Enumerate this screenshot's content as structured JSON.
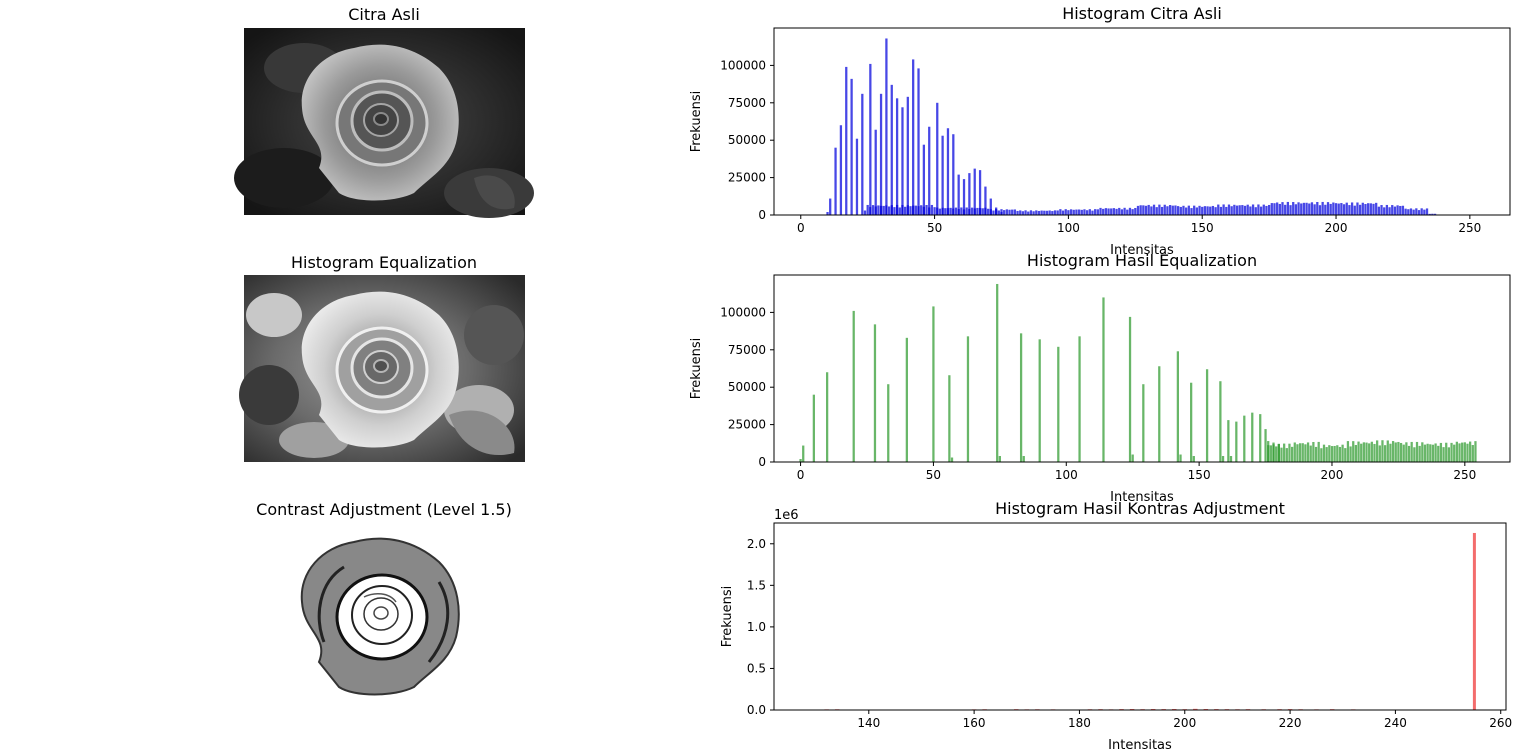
{
  "images": [
    {
      "title": "Citra Asli",
      "variant": "original"
    },
    {
      "title": "Histogram Equalization",
      "variant": "equalized"
    },
    {
      "title": "Contrast Adjustment (Level 1.5)",
      "variant": "contrast"
    }
  ],
  "chart_data": [
    {
      "type": "bar",
      "title": "Histogram Citra Asli",
      "xlabel": "Intensitas",
      "ylabel": "Frekuensi",
      "xlim": [
        -10,
        265
      ],
      "ylim": [
        0,
        125000
      ],
      "xticks": [
        0,
        50,
        100,
        150,
        200,
        250
      ],
      "yticks": [
        0,
        25000,
        50000,
        75000,
        100000
      ],
      "ytick_labels": [
        "0",
        "25000",
        "50000",
        "75000",
        "100000"
      ],
      "xtick_labels": [
        "0",
        "50",
        "100",
        "150",
        "200",
        "250"
      ],
      "offset_label": "",
      "color": "#0000dd",
      "bar_width": 1,
      "grid": false,
      "bars": [
        [
          10,
          2000
        ],
        [
          11,
          11000
        ],
        [
          13,
          45000
        ],
        [
          15,
          60000
        ],
        [
          17,
          99000
        ],
        [
          19,
          91000
        ],
        [
          21,
          51000
        ],
        [
          23,
          81000
        ],
        [
          24,
          3000
        ],
        [
          26,
          101000
        ],
        [
          28,
          57000
        ],
        [
          30,
          81000
        ],
        [
          32,
          118000
        ],
        [
          34,
          87000
        ],
        [
          36,
          78000
        ],
        [
          38,
          72000
        ],
        [
          40,
          79000
        ],
        [
          42,
          104000
        ],
        [
          44,
          98000
        ],
        [
          46,
          47000
        ],
        [
          48,
          59000
        ],
        [
          51,
          75000
        ],
        [
          53,
          53000
        ],
        [
          55,
          58000
        ],
        [
          57,
          54000
        ],
        [
          59,
          27000
        ],
        [
          61,
          24000
        ],
        [
          63,
          28000
        ],
        [
          65,
          31000
        ],
        [
          67,
          30000
        ],
        [
          69,
          19000
        ],
        [
          71,
          11000
        ],
        [
          73,
          5000
        ],
        [
          75,
          2000
        ]
      ],
      "band_segments": [
        [
          25,
          50,
          6000
        ],
        [
          51,
          70,
          4500
        ],
        [
          71,
          80,
          3500
        ],
        [
          81,
          95,
          2800
        ],
        [
          96,
          110,
          3500
        ],
        [
          111,
          125,
          4300
        ],
        [
          126,
          140,
          6200
        ],
        [
          141,
          155,
          5600
        ],
        [
          156,
          175,
          6300
        ],
        [
          176,
          200,
          7800
        ],
        [
          201,
          215,
          7500
        ],
        [
          216,
          225,
          6000
        ],
        [
          226,
          234,
          4000
        ],
        [
          235,
          237,
          800
        ]
      ]
    },
    {
      "type": "bar",
      "title": "Histogram Hasil Equalization",
      "xlabel": "Intensitas",
      "ylabel": "Frekuensi",
      "xlim": [
        -10,
        267
      ],
      "ylim": [
        0,
        125000
      ],
      "xticks": [
        0,
        50,
        100,
        150,
        200,
        250
      ],
      "yticks": [
        0,
        25000,
        50000,
        75000,
        100000
      ],
      "ytick_labels": [
        "0",
        "25000",
        "50000",
        "75000",
        "100000"
      ],
      "xtick_labels": [
        "0",
        "50",
        "100",
        "150",
        "200",
        "250"
      ],
      "offset_label": "",
      "color": "#2e9a2e",
      "bar_width": 1,
      "grid": false,
      "bars": [
        [
          0,
          2000
        ],
        [
          1,
          11000
        ],
        [
          5,
          45000
        ],
        [
          10,
          60000
        ],
        [
          20,
          101000
        ],
        [
          28,
          92000
        ],
        [
          33,
          52000
        ],
        [
          40,
          83000
        ],
        [
          50,
          104000
        ],
        [
          56,
          58000
        ],
        [
          57,
          3000
        ],
        [
          63,
          84000
        ],
        [
          74,
          119000
        ],
        [
          75,
          4000
        ],
        [
          83,
          86000
        ],
        [
          84,
          4000
        ],
        [
          90,
          82000
        ],
        [
          97,
          77000
        ],
        [
          105,
          84000
        ],
        [
          114,
          110000
        ],
        [
          124,
          97000
        ],
        [
          125,
          5000
        ],
        [
          129,
          52000
        ],
        [
          135,
          64000
        ],
        [
          142,
          74000
        ],
        [
          143,
          5000
        ],
        [
          147,
          53000
        ],
        [
          148,
          4000
        ],
        [
          153,
          62000
        ],
        [
          158,
          54000
        ],
        [
          159,
          4000
        ],
        [
          161,
          28000
        ],
        [
          162,
          4000
        ],
        [
          164,
          27000
        ],
        [
          167,
          31000
        ],
        [
          170,
          33000
        ],
        [
          173,
          32000
        ],
        [
          175,
          22000
        ],
        [
          176,
          14000
        ],
        [
          178,
          13000
        ],
        [
          180,
          12000
        ]
      ],
      "band_segments": [
        [
          176,
          185,
          11000
        ],
        [
          186,
          195,
          12000
        ],
        [
          196,
          205,
          10500
        ],
        [
          206,
          215,
          12500
        ],
        [
          216,
          225,
          13000
        ],
        [
          226,
          235,
          12000
        ],
        [
          236,
          245,
          11500
        ],
        [
          246,
          254,
          12500
        ]
      ]
    },
    {
      "type": "bar",
      "title": "Histogram Hasil Kontras Adjustment",
      "xlabel": "Intensitas",
      "ylabel": "Frekuensi",
      "xlim": [
        122,
        261
      ],
      "ylim": [
        0,
        2250000
      ],
      "xticks": [
        140,
        160,
        180,
        200,
        220,
        240,
        260
      ],
      "yticks": [
        0,
        500000,
        1000000,
        1500000,
        2000000
      ],
      "ytick_labels": [
        "0.0",
        "0.5",
        "1.0",
        "1.5",
        "2.0"
      ],
      "xtick_labels": [
        "140",
        "160",
        "180",
        "200",
        "220",
        "240",
        "260"
      ],
      "offset_label": "1e6",
      "color": "#ee3333",
      "bar_width": 1,
      "grid": false,
      "bars": [
        [
          132,
          8000
        ],
        [
          134,
          9000
        ],
        [
          160,
          8000
        ],
        [
          162,
          9000
        ],
        [
          168,
          10000
        ],
        [
          170,
          8000
        ],
        [
          172,
          9000
        ],
        [
          175,
          8000
        ],
        [
          182,
          9000
        ],
        [
          184,
          10000
        ],
        [
          186,
          8000
        ],
        [
          188,
          11000
        ],
        [
          190,
          12000
        ],
        [
          192,
          10000
        ],
        [
          194,
          12000
        ],
        [
          196,
          11000
        ],
        [
          198,
          12000
        ],
        [
          200,
          10000
        ],
        [
          202,
          14000
        ],
        [
          204,
          12000
        ],
        [
          206,
          11000
        ],
        [
          208,
          10000
        ],
        [
          210,
          9000
        ],
        [
          212,
          10000
        ],
        [
          215,
          9000
        ],
        [
          218,
          10000
        ],
        [
          220,
          11000
        ],
        [
          222,
          9000
        ],
        [
          225,
          8000
        ],
        [
          228,
          10000
        ],
        [
          232,
          8000
        ],
        [
          255,
          2130000
        ]
      ],
      "band_segments": []
    }
  ]
}
